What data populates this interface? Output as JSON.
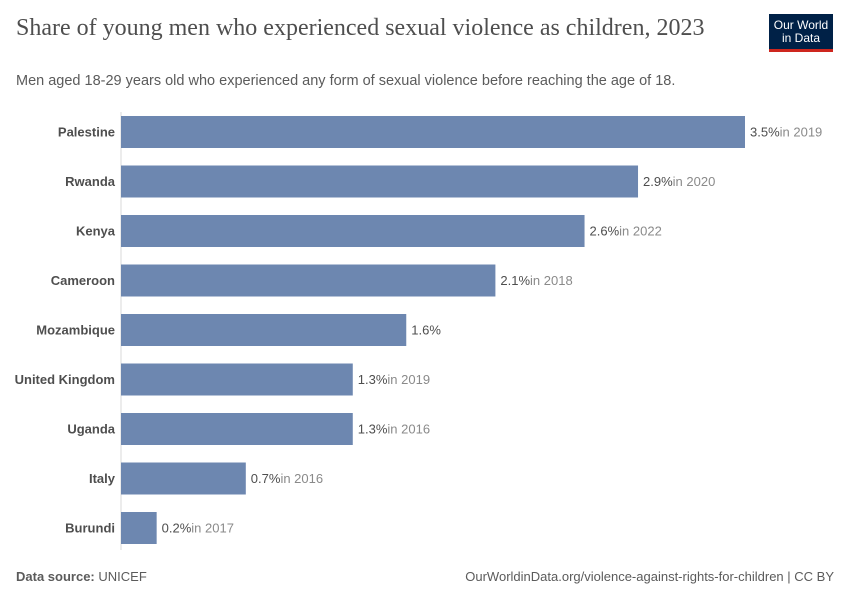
{
  "header": {
    "title": "Share of young men who experienced sexual violence as children, 2023",
    "subtitle": "Men aged 18-29 years old who experienced any form of sexual violence before reaching the age of 18.",
    "logo_text": "Our World in Data"
  },
  "chart_data": {
    "type": "bar",
    "orientation": "horizontal",
    "unit": "%",
    "categories": [
      "Palestine",
      "Rwanda",
      "Kenya",
      "Cameroon",
      "Mozambique",
      "United Kingdom",
      "Uganda",
      "Italy",
      "Burundi"
    ],
    "values": [
      3.5,
      2.9,
      2.6,
      2.1,
      1.6,
      1.3,
      1.3,
      0.7,
      0.2
    ],
    "value_labels": [
      "3.5%",
      "2.9%",
      "2.6%",
      "2.1%",
      "1.6%",
      "1.3%",
      "1.3%",
      "0.7%",
      "0.2%"
    ],
    "year_notes": [
      "in 2019",
      "in 2020",
      "in 2022",
      "in 2018",
      "",
      "in 2019",
      "in 2016",
      "in 2016",
      "in 2017"
    ],
    "xlim": [
      0,
      3.5
    ],
    "grid": false,
    "bar_color": "#6d87b0"
  },
  "footer": {
    "source_label": "Data source:",
    "source": "UNICEF",
    "url": "OurWorldinData.org/violence-against-rights-for-children | CC BY"
  }
}
